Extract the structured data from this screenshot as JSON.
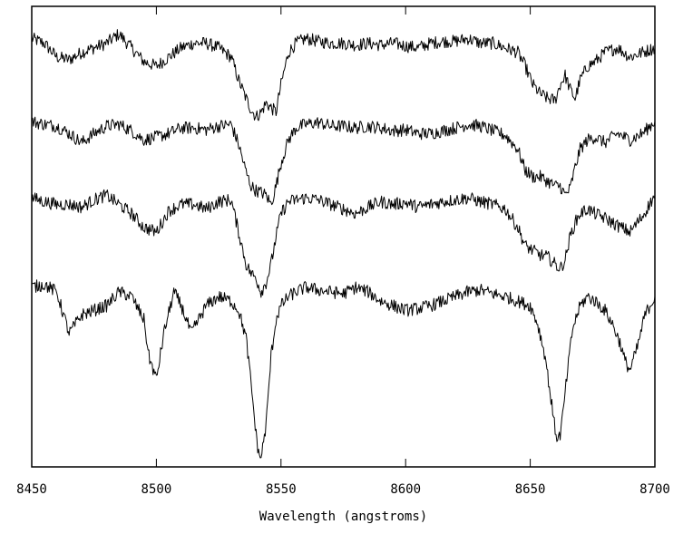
{
  "chart_data": {
    "type": "line",
    "title": "",
    "xlabel": "Wavelength (angstroms)",
    "ylabel": "",
    "xlim": [
      8450,
      8700
    ],
    "ylim": [
      0.0,
      5.0
    ],
    "x_ticks": [
      8450,
      8500,
      8550,
      8600,
      8650,
      8700
    ],
    "x_tick_labels": [
      "8450",
      "8500",
      "8550",
      "8600",
      "8650",
      "8700"
    ],
    "grid": false,
    "legend": "none",
    "line_color": "#000000",
    "series": [
      {
        "x": [
          8450,
          8455,
          8460,
          8465,
          8470,
          8475,
          8480,
          8485,
          8490,
          8495,
          8500,
          8505,
          8510,
          8515,
          8520,
          8525,
          8530,
          8533,
          8536,
          8538,
          8540,
          8542,
          8544,
          8546,
          8548,
          8550,
          8553,
          8556,
          8560,
          8565,
          8570,
          8575,
          8580,
          8585,
          8590,
          8595,
          8600,
          8605,
          8610,
          8615,
          8620,
          8625,
          8630,
          8635,
          8640,
          8645,
          8648,
          8651,
          8654,
          8657,
          8660,
          8662,
          8664,
          8666,
          8668,
          8670,
          8673,
          8676,
          8680,
          8685,
          8690,
          8695,
          8700
        ],
        "y": [
          4.65,
          4.6,
          4.45,
          4.42,
          4.5,
          4.55,
          4.6,
          4.7,
          4.55,
          4.4,
          4.35,
          4.45,
          4.55,
          4.6,
          4.6,
          4.55,
          4.45,
          4.2,
          4.0,
          3.88,
          3.8,
          3.85,
          3.95,
          3.9,
          3.85,
          4.15,
          4.5,
          4.6,
          4.65,
          4.62,
          4.6,
          4.6,
          4.58,
          4.6,
          4.58,
          4.6,
          4.57,
          4.55,
          4.6,
          4.62,
          4.62,
          4.65,
          4.6,
          4.6,
          4.55,
          4.5,
          4.35,
          4.15,
          4.05,
          4.0,
          3.98,
          4.15,
          4.25,
          4.1,
          4.0,
          4.2,
          4.35,
          4.4,
          4.5,
          4.55,
          4.45,
          4.5,
          4.55
        ]
      },
      {
        "x": [
          8450,
          8455,
          8460,
          8465,
          8470,
          8475,
          8480,
          8485,
          8490,
          8495,
          8500,
          8505,
          8510,
          8515,
          8520,
          8525,
          8530,
          8533,
          8536,
          8538,
          8540,
          8542,
          8544,
          8546,
          8548,
          8550,
          8553,
          8556,
          8560,
          8565,
          8570,
          8575,
          8580,
          8585,
          8590,
          8595,
          8600,
          8605,
          8610,
          8615,
          8620,
          8625,
          8630,
          8635,
          8640,
          8645,
          8648,
          8651,
          8654,
          8657,
          8660,
          8662,
          8664,
          8666,
          8668,
          8670,
          8673,
          8676,
          8680,
          8685,
          8690,
          8695,
          8700
        ],
        "y": [
          3.75,
          3.72,
          3.7,
          3.62,
          3.52,
          3.62,
          3.7,
          3.72,
          3.65,
          3.55,
          3.58,
          3.62,
          3.68,
          3.68,
          3.66,
          3.7,
          3.72,
          3.5,
          3.2,
          3.05,
          3.0,
          2.98,
          2.95,
          2.85,
          3.05,
          3.3,
          3.55,
          3.68,
          3.72,
          3.74,
          3.7,
          3.7,
          3.68,
          3.7,
          3.68,
          3.65,
          3.66,
          3.62,
          3.62,
          3.65,
          3.68,
          3.72,
          3.7,
          3.65,
          3.6,
          3.45,
          3.22,
          3.15,
          3.15,
          3.1,
          3.05,
          3.05,
          2.95,
          3.02,
          3.25,
          3.45,
          3.55,
          3.58,
          3.52,
          3.62,
          3.55,
          3.62,
          3.75
        ]
      },
      {
        "x": [
          8450,
          8455,
          8460,
          8465,
          8470,
          8475,
          8480,
          8485,
          8490,
          8495,
          8500,
          8505,
          8510,
          8515,
          8520,
          8525,
          8530,
          8533,
          8536,
          8538,
          8540,
          8542,
          8544,
          8546,
          8548,
          8550,
          8553,
          8556,
          8560,
          8565,
          8570,
          8575,
          8580,
          8585,
          8590,
          8595,
          8600,
          8605,
          8610,
          8615,
          8620,
          8625,
          8630,
          8635,
          8640,
          8645,
          8648,
          8651,
          8654,
          8657,
          8660,
          8662,
          8664,
          8666,
          8668,
          8670,
          8673,
          8676,
          8680,
          8685,
          8690,
          8695,
          8700
        ],
        "y": [
          2.92,
          2.88,
          2.85,
          2.85,
          2.82,
          2.9,
          2.95,
          2.85,
          2.75,
          2.6,
          2.55,
          2.78,
          2.85,
          2.85,
          2.8,
          2.88,
          2.9,
          2.55,
          2.2,
          2.1,
          2.05,
          1.9,
          2.0,
          2.2,
          2.5,
          2.75,
          2.88,
          2.9,
          2.92,
          2.9,
          2.85,
          2.8,
          2.75,
          2.82,
          2.88,
          2.85,
          2.87,
          2.82,
          2.85,
          2.88,
          2.9,
          2.92,
          2.88,
          2.85,
          2.8,
          2.6,
          2.4,
          2.35,
          2.3,
          2.28,
          2.2,
          2.15,
          2.25,
          2.5,
          2.65,
          2.75,
          2.8,
          2.75,
          2.7,
          2.62,
          2.55,
          2.72,
          2.95
        ]
      },
      {
        "x": [
          8450,
          8455,
          8460,
          8465,
          8470,
          8475,
          8480,
          8485,
          8490,
          8495,
          8497,
          8500,
          8503,
          8507,
          8510,
          8514,
          8520,
          8525,
          8530,
          8533,
          8536,
          8538,
          8540,
          8541,
          8542,
          8544,
          8546,
          8548,
          8550,
          8553,
          8556,
          8560,
          8565,
          8570,
          8575,
          8580,
          8585,
          8590,
          8595,
          8600,
          8605,
          8610,
          8615,
          8620,
          8625,
          8630,
          8635,
          8640,
          8645,
          8650,
          8653,
          8656,
          8658,
          8660,
          8661,
          8662,
          8663,
          8665,
          8667,
          8670,
          8673,
          8676,
          8680,
          8683,
          8686,
          8688,
          8690,
          8693,
          8696,
          8700
        ],
        "y": [
          1.95,
          1.98,
          1.9,
          1.45,
          1.65,
          1.7,
          1.75,
          1.9,
          1.85,
          1.6,
          1.2,
          0.95,
          1.45,
          1.9,
          1.75,
          1.45,
          1.75,
          1.85,
          1.8,
          1.7,
          1.4,
          0.9,
          0.35,
          0.15,
          0.1,
          0.45,
          1.2,
          1.6,
          1.75,
          1.85,
          1.9,
          1.95,
          1.92,
          1.9,
          1.88,
          1.95,
          1.9,
          1.8,
          1.75,
          1.7,
          1.72,
          1.75,
          1.8,
          1.85,
          1.9,
          1.92,
          1.88,
          1.85,
          1.8,
          1.75,
          1.55,
          1.2,
          0.8,
          0.4,
          0.3,
          0.35,
          0.55,
          1.05,
          1.5,
          1.75,
          1.85,
          1.8,
          1.7,
          1.55,
          1.35,
          1.15,
          1.05,
          1.3,
          1.65,
          1.85
        ]
      }
    ]
  }
}
